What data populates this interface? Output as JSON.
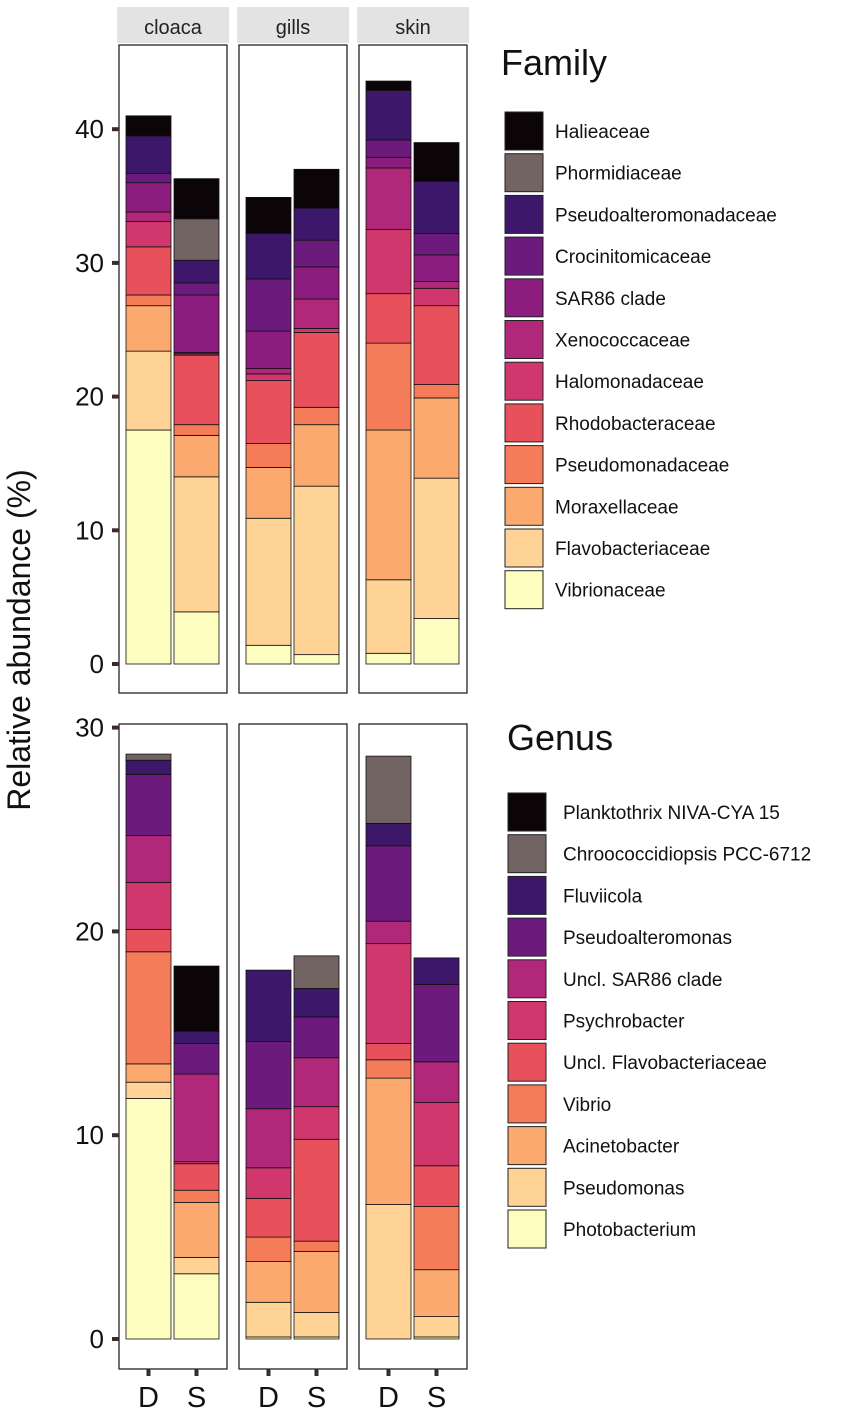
{
  "ylabel": "Relative abundance (%)",
  "chart_data": [
    {
      "type": "bar",
      "stacked": true,
      "title": "Family",
      "facets": [
        "cloaca",
        "gills",
        "skin"
      ],
      "categories": [
        "D",
        "S"
      ],
      "ylim": [
        0,
        45
      ],
      "yticks": [
        0,
        10,
        20,
        30,
        40
      ],
      "ylabel": "Relative abundance (%)",
      "legend_position": "right",
      "series": [
        {
          "name": "Vibrionaceae",
          "color": "#fcfdbf",
          "values": {
            "cloaca": [
              17.5,
              3.9
            ],
            "gills": [
              1.4,
              0.7
            ],
            "skin": [
              0.8,
              3.4
            ]
          }
        },
        {
          "name": "Flavobacteriaceae",
          "color": "#fed395",
          "values": {
            "cloaca": [
              5.9,
              10.1
            ],
            "gills": [
              9.5,
              12.6
            ],
            "skin": [
              5.5,
              10.5
            ]
          }
        },
        {
          "name": "Moraxellaceae",
          "color": "#fba96e",
          "values": {
            "cloaca": [
              3.4,
              3.1
            ],
            "gills": [
              3.8,
              4.6
            ],
            "skin": [
              11.2,
              6.0
            ]
          }
        },
        {
          "name": "Pseudomonadaceae",
          "color": "#f47c58",
          "values": {
            "cloaca": [
              0.8,
              0.8
            ],
            "gills": [
              1.8,
              1.3
            ],
            "skin": [
              6.5,
              1.0
            ]
          }
        },
        {
          "name": "Rhodobacteraceae",
          "color": "#e8505b",
          "values": {
            "cloaca": [
              3.6,
              5.2
            ],
            "gills": [
              4.7,
              5.6
            ],
            "skin": [
              3.7,
              5.9
            ]
          }
        },
        {
          "name": "Halomonadaceae",
          "color": "#d0386d",
          "values": {
            "cloaca": [
              1.9,
              0.1
            ],
            "gills": [
              0.5,
              0.3
            ],
            "skin": [
              4.8,
              1.3
            ]
          }
        },
        {
          "name": "Xenococcaceae",
          "color": "#b1277a",
          "values": {
            "cloaca": [
              0.7,
              0.1
            ],
            "gills": [
              0.4,
              2.2
            ],
            "skin": [
              4.6,
              0.5
            ]
          }
        },
        {
          "name": "SAR86 clade",
          "color": "#8c1c7d",
          "values": {
            "cloaca": [
              2.2,
              4.3
            ],
            "gills": [
              2.8,
              2.4
            ],
            "skin": [
              0.8,
              2.0
            ]
          }
        },
        {
          "name": "Crocinitomicaceae",
          "color": "#6c1b7c",
          "values": {
            "cloaca": [
              0.7,
              0.9
            ],
            "gills": [
              3.9,
              2.0
            ],
            "skin": [
              1.3,
              1.6
            ]
          }
        },
        {
          "name": "Pseudoalteromonadaceae",
          "color": "#3d1769",
          "values": {
            "cloaca": [
              2.8,
              1.7
            ],
            "gills": [
              3.4,
              2.4
            ],
            "skin": [
              3.7,
              3.9
            ]
          }
        },
        {
          "name": "Phormidiaceae",
          "color": "#716462",
          "values": {
            "cloaca": [
              0.0,
              3.1
            ],
            "gills": [
              0.0,
              0.0
            ],
            "skin": [
              0.0,
              0.0
            ]
          }
        },
        {
          "name": "Halieaceae",
          "color": "#0c0508",
          "values": {
            "cloaca": [
              1.5,
              3.0
            ],
            "gills": [
              2.7,
              2.9
            ],
            "skin": [
              0.7,
              2.9
            ]
          }
        }
      ]
    },
    {
      "type": "bar",
      "stacked": true,
      "title": "Genus",
      "facets": [
        "cloaca",
        "gills",
        "skin"
      ],
      "categories": [
        "D",
        "S"
      ],
      "ylim": [
        0,
        30.5
      ],
      "yticks": [
        0,
        10,
        20,
        30
      ],
      "ylabel": "Relative abundance (%)",
      "legend_position": "right",
      "series": [
        {
          "name": "Photobacterium",
          "color": "#fcfdbf",
          "values": {
            "cloaca": [
              11.8,
              3.2
            ],
            "gills": [
              0.1,
              0.1
            ],
            "skin": [
              0.0,
              0.1
            ]
          }
        },
        {
          "name": "Pseudomonas",
          "color": "#fed395",
          "values": {
            "cloaca": [
              0.8,
              0.8
            ],
            "gills": [
              1.7,
              1.2
            ],
            "skin": [
              6.6,
              1.0
            ]
          }
        },
        {
          "name": "Acinetobacter",
          "color": "#fba96e",
          "values": {
            "cloaca": [
              0.9,
              2.7
            ],
            "gills": [
              2.0,
              3.0
            ],
            "skin": [
              6.2,
              2.3
            ]
          }
        },
        {
          "name": "Vibrio",
          "color": "#f47c58",
          "values": {
            "cloaca": [
              5.5,
              0.6
            ],
            "gills": [
              1.2,
              0.5
            ],
            "skin": [
              0.9,
              3.1
            ]
          }
        },
        {
          "name": "Uncl. Flavobacteriaceae",
          "color": "#e8505b",
          "values": {
            "cloaca": [
              1.1,
              1.3
            ],
            "gills": [
              1.9,
              5.0
            ],
            "skin": [
              0.8,
              2.0
            ]
          }
        },
        {
          "name": "Psychrobacter",
          "color": "#d0386d",
          "values": {
            "cloaca": [
              2.3,
              0.1
            ],
            "gills": [
              1.5,
              1.6
            ],
            "skin": [
              4.9,
              3.1
            ]
          }
        },
        {
          "name": "Uncl. SAR86 clade",
          "color": "#b1277a",
          "values": {
            "cloaca": [
              2.3,
              4.3
            ],
            "gills": [
              2.9,
              2.4
            ],
            "skin": [
              1.1,
              2.0
            ]
          }
        },
        {
          "name": "Pseudoalteromonas",
          "color": "#6c1b7c",
          "values": {
            "cloaca": [
              3.0,
              1.5
            ],
            "gills": [
              3.3,
              2.0
            ],
            "skin": [
              3.7,
              3.8
            ]
          }
        },
        {
          "name": "Fluviicola",
          "color": "#3d1769",
          "values": {
            "cloaca": [
              0.7,
              0.6
            ],
            "gills": [
              3.5,
              1.4
            ],
            "skin": [
              1.1,
              1.3
            ]
          }
        },
        {
          "name": "Chroococcidiopsis PCC-6712",
          "color": "#716462",
          "values": {
            "cloaca": [
              0.3,
              0.0
            ],
            "gills": [
              0.0,
              1.6
            ],
            "skin": [
              3.3,
              0.0
            ]
          }
        },
        {
          "name": "Planktothrix NIVA-CYA 15",
          "color": "#0c0508",
          "values": {
            "cloaca": [
              0.0,
              3.2
            ],
            "gills": [
              0.0,
              0.0
            ],
            "skin": [
              0.0,
              0.0
            ]
          }
        }
      ]
    }
  ]
}
